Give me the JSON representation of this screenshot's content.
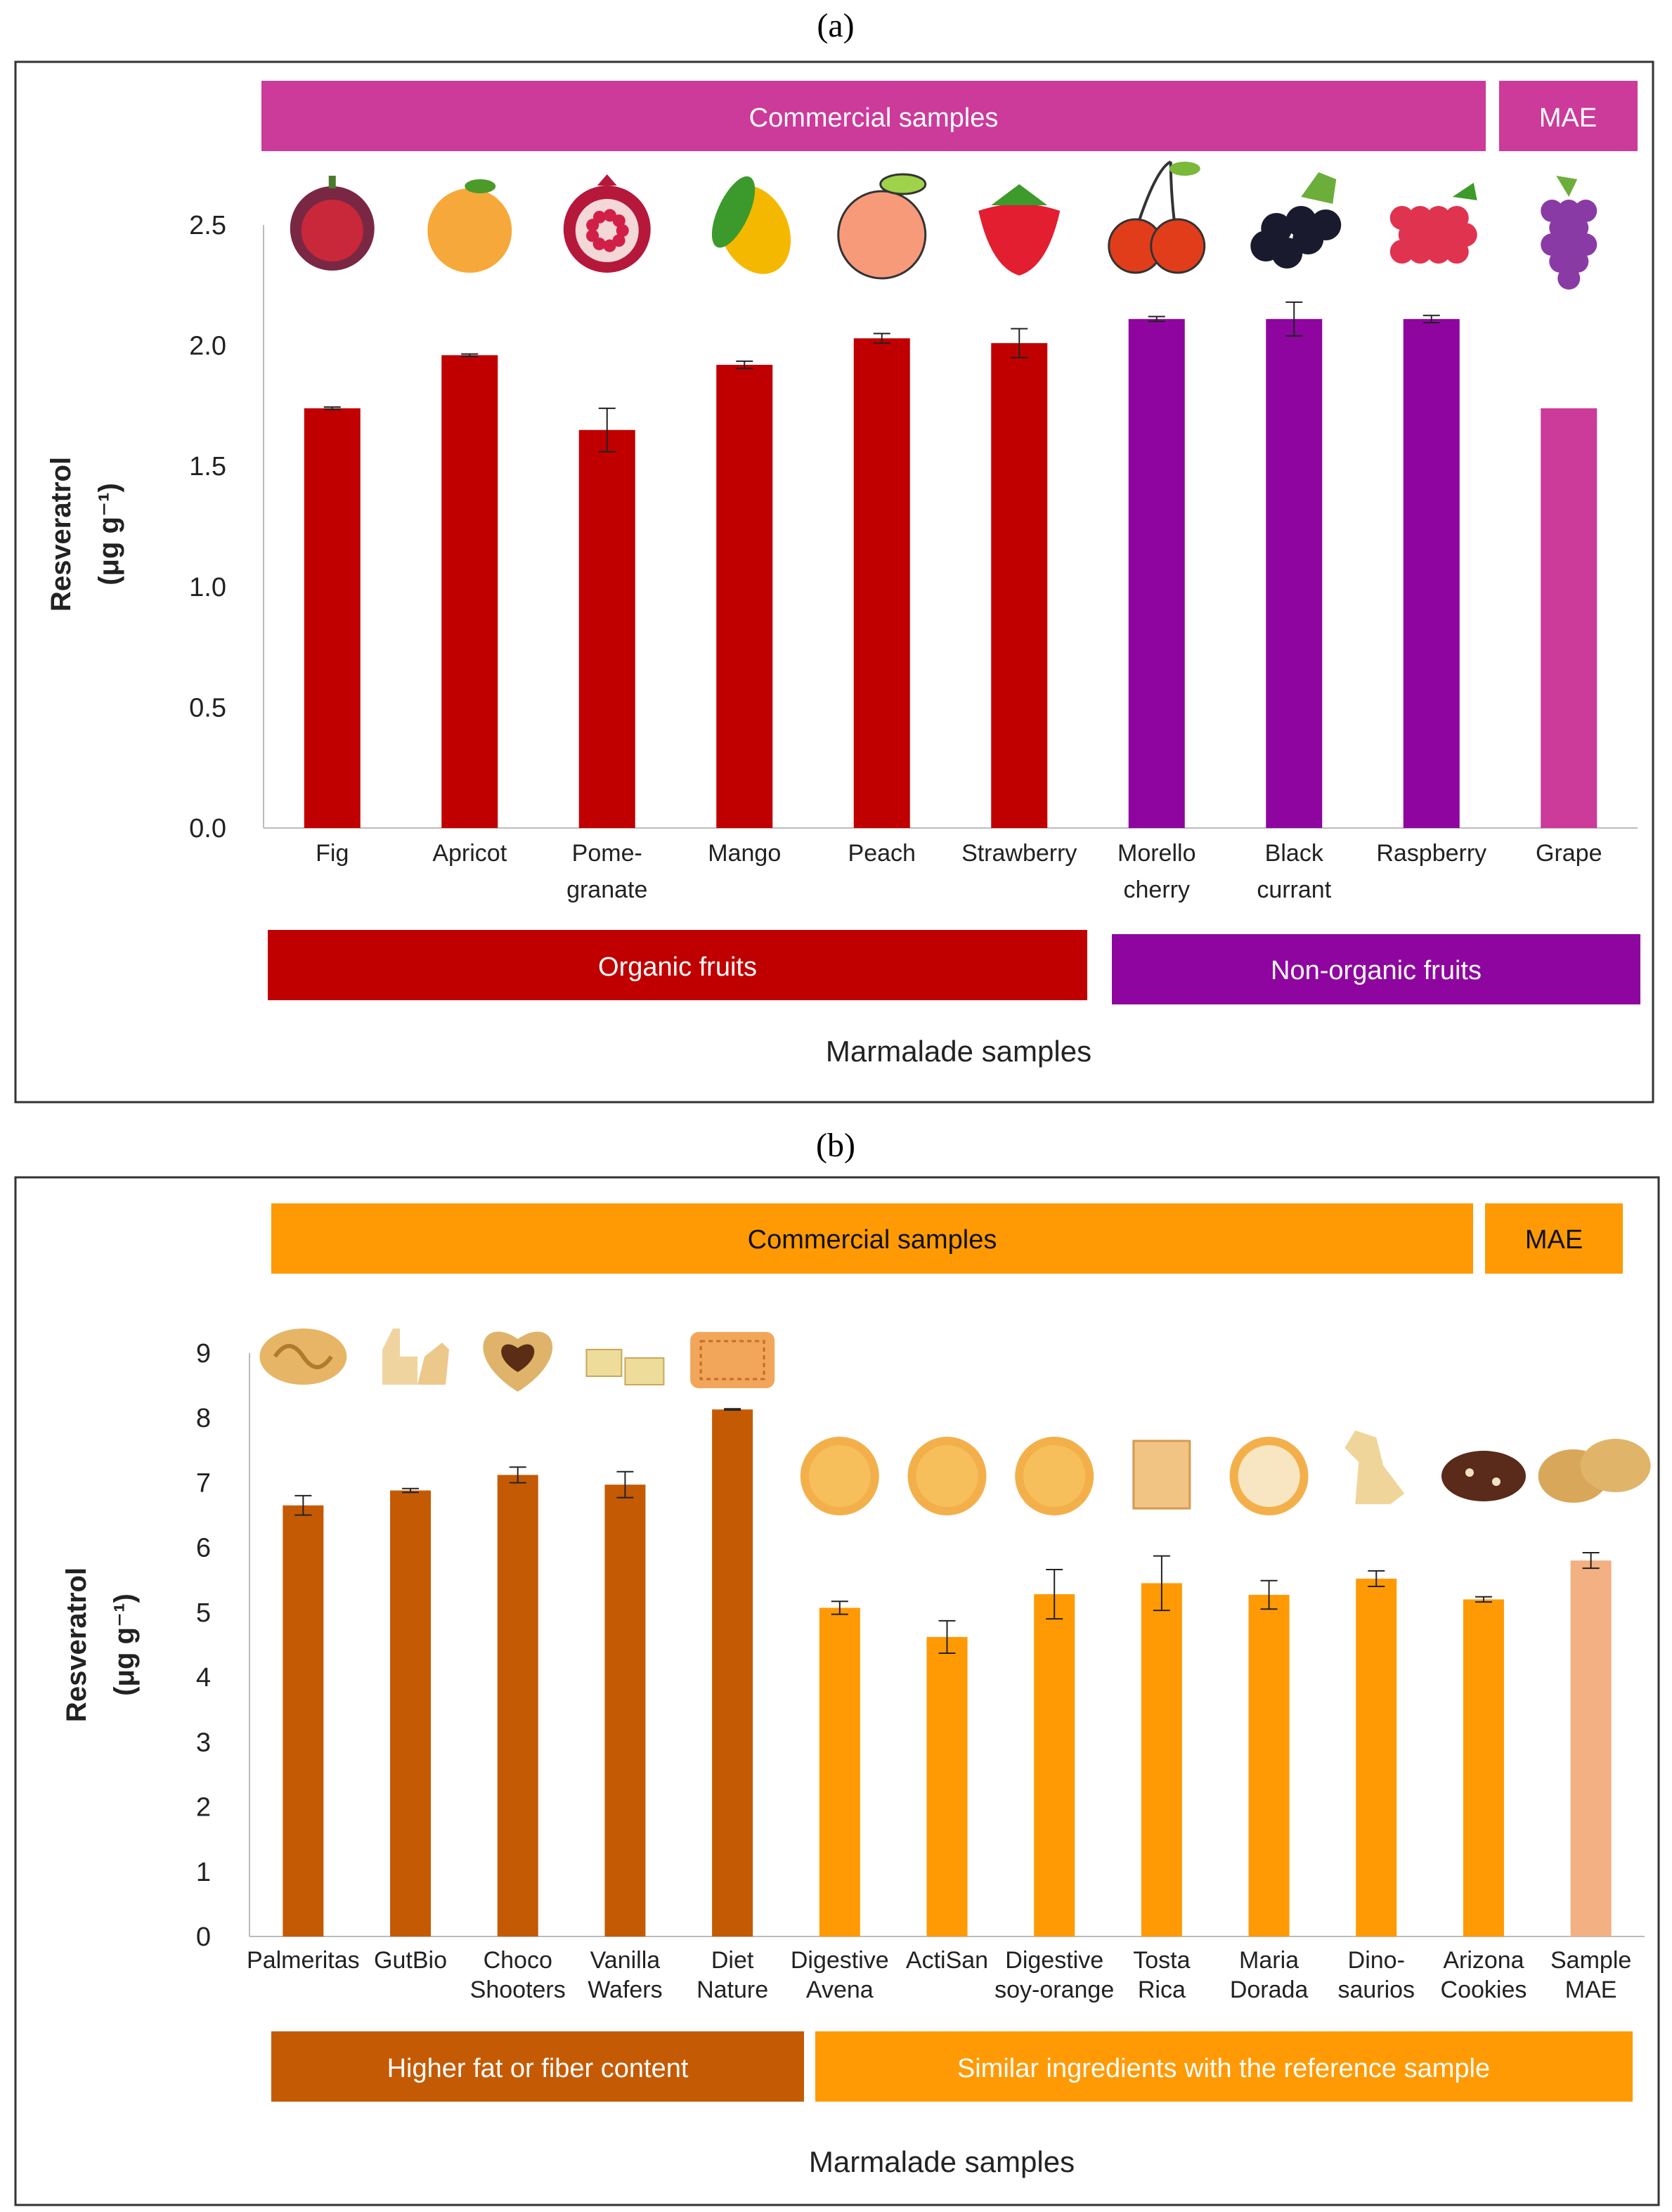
{
  "chart_data": [
    {
      "panel_label": "(a)",
      "type": "bar",
      "title": "",
      "xlabel": "Marmalade samples",
      "ylabel": "Resveratrol",
      "ylabel_unit": "(μg g⁻¹)",
      "ylim": [
        0,
        2.5
      ],
      "yticks": [
        "0.0",
        "0.5",
        "1.0",
        "1.5",
        "2.0",
        "2.5"
      ],
      "categories": [
        [
          "Fig"
        ],
        [
          "Apricot"
        ],
        [
          "Pome-",
          "granate"
        ],
        [
          "Mango"
        ],
        [
          "Peach"
        ],
        [
          "Strawberry"
        ],
        [
          "Morello",
          "cherry"
        ],
        [
          "Black",
          "currant"
        ],
        [
          "Raspberry"
        ],
        [
          "Grape"
        ]
      ],
      "values": [
        1.74,
        1.96,
        1.65,
        1.92,
        2.03,
        2.01,
        2.11,
        2.11,
        2.11,
        1.74
      ],
      "errors": [
        0.005,
        0.005,
        0.09,
        0.015,
        0.02,
        0.06,
        0.01,
        0.07,
        0.015,
        0.0
      ],
      "bar_colors": [
        "#c00000",
        "#c00000",
        "#c00000",
        "#c00000",
        "#c00000",
        "#c00000",
        "#8e069f",
        "#8e069f",
        "#8e069f",
        "#cc3a9a"
      ],
      "icons": [
        "fig-icon",
        "apricot-icon",
        "pomegranate-icon",
        "mango-icon",
        "peach-icon",
        "strawberry-icon",
        "cherry-icon",
        "blackcurrant-icon",
        "raspberry-icon",
        "grape-icon"
      ],
      "top_bands": [
        {
          "label": "Commercial samples",
          "color": "#cc3a9a"
        },
        {
          "label": "MAE",
          "color": "#cc3a9a"
        }
      ],
      "bottom_bands": [
        {
          "label": "Organic fruits",
          "color": "#c00000"
        },
        {
          "label": "Non-organic fruits",
          "color": "#8e069f"
        }
      ]
    },
    {
      "panel_label": "(b)",
      "type": "bar",
      "title": "",
      "xlabel": "Marmalade samples",
      "ylabel": "Resveratrol",
      "ylabel_unit": "(μg g⁻¹)",
      "ylim": [
        0,
        9
      ],
      "yticks": [
        "0",
        "1",
        "2",
        "3",
        "4",
        "5",
        "6",
        "7",
        "8",
        "9"
      ],
      "categories": [
        [
          "Palmeritas"
        ],
        [
          "GutBio"
        ],
        [
          "Choco",
          "Shooters"
        ],
        [
          "Vanilla",
          "Wafers"
        ],
        [
          "Diet",
          "Nature"
        ],
        [
          "Digestive",
          "Avena"
        ],
        [
          "ActiSan"
        ],
        [
          "Digestive",
          "soy-orange"
        ],
        [
          "Tosta",
          "Rica"
        ],
        [
          "Maria",
          "Dorada"
        ],
        [
          "Dino-",
          "saurios"
        ],
        [
          "Arizona",
          "Cookies"
        ],
        [
          "Sample",
          "MAE"
        ]
      ],
      "values": [
        6.65,
        6.88,
        7.12,
        6.97,
        8.13,
        5.07,
        4.62,
        5.28,
        5.45,
        5.27,
        5.52,
        5.2,
        5.8
      ],
      "errors": [
        0.15,
        0.03,
        0.12,
        0.2,
        0.01,
        0.1,
        0.25,
        0.38,
        0.42,
        0.22,
        0.12,
        0.04,
        0.12
      ],
      "bar_colors": [
        "#c55a05",
        "#c55a05",
        "#c55a05",
        "#c55a05",
        "#c55a05",
        "#ff9a05",
        "#ff9a05",
        "#ff9a05",
        "#ff9a05",
        "#ff9a05",
        "#ff9a05",
        "#ff9a05",
        "#f3b083"
      ],
      "icons": [
        "palmerita-biscuit-icon",
        "animal-biscuit-icon",
        "heart-biscuit-icon",
        "wafer-icon",
        "square-biscuit-icon",
        "round-biscuit-icon",
        "round-biscuit-icon",
        "round-biscuit-icon",
        "square-cracker-icon",
        "round-biscuit-icon",
        "dinosaur-biscuit-icon",
        "chocolate-cookie-icon",
        "oat-cookie-icon"
      ],
      "top_bands": [
        {
          "label": "Commercial samples",
          "color": "#ff9a05"
        },
        {
          "label": "MAE",
          "color": "#ff9a05"
        }
      ],
      "bottom_bands": [
        {
          "label": "Higher fat or fiber content",
          "color": "#c55a05"
        },
        {
          "label": "Similar ingredients with the reference sample",
          "color": "#ff9a05"
        }
      ]
    }
  ]
}
